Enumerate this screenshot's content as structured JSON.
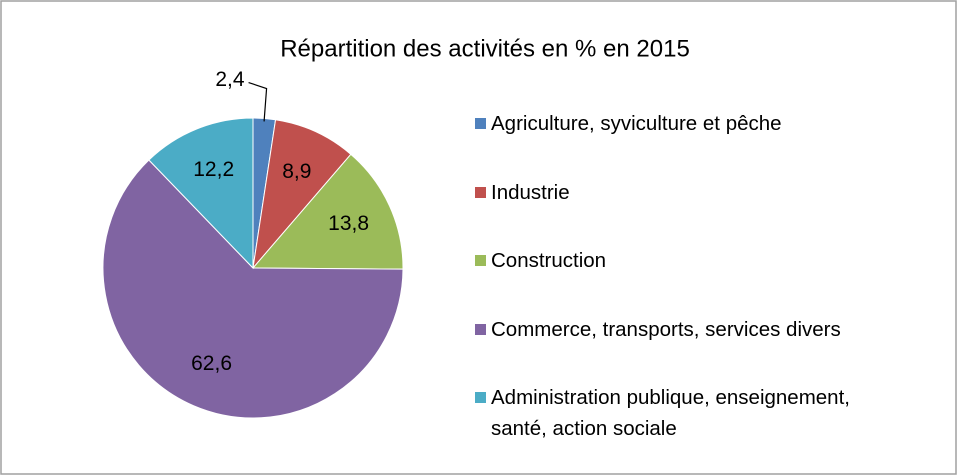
{
  "chart_data": {
    "type": "pie",
    "title": "Répartition des activités en % en 2015",
    "categories": [
      "Agriculture, syviculture et pêche",
      "Industrie",
      "Construction",
      "Commerce, transports, services divers",
      "Administration publique, enseignement, santé, action sociale"
    ],
    "values": [
      2.4,
      8.9,
      13.8,
      62.6,
      12.2
    ],
    "value_labels": [
      "2,4",
      "8,9",
      "13,8",
      "62,6",
      "12,2"
    ],
    "colors": [
      "#4f81bd",
      "#c0504d",
      "#9bbb59",
      "#8064a2",
      "#4bacc6"
    ],
    "legend": "right"
  }
}
